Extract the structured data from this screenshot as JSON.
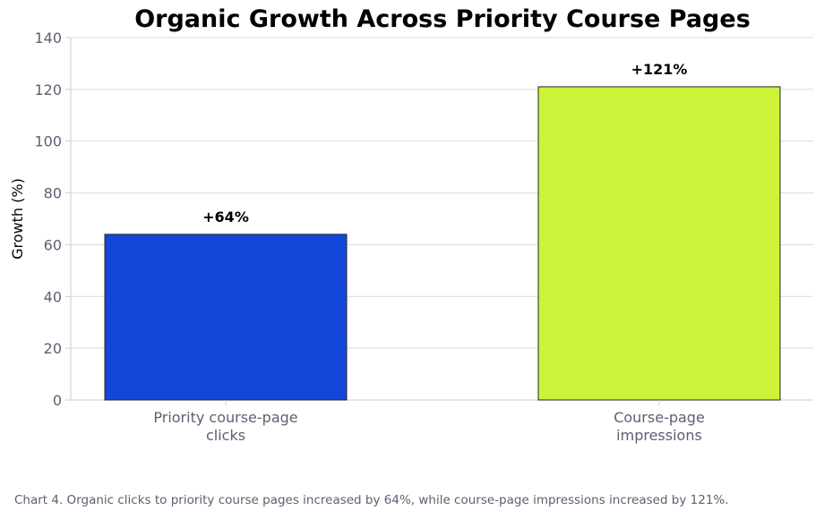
{
  "chart_data": {
    "type": "bar",
    "title": "Organic Growth Across Priority Course Pages",
    "ylabel": "Growth (%)",
    "xlabel": "",
    "ylim": [
      0,
      140
    ],
    "yticks": [
      0,
      20,
      40,
      60,
      80,
      100,
      120,
      140
    ],
    "grid": true,
    "categories": [
      "Priority course-page clicks",
      "Course-page impressions"
    ],
    "category_lines": [
      [
        "Priority course-page",
        "clicks"
      ],
      [
        "Course-page",
        "impressions"
      ]
    ],
    "values": [
      64,
      121
    ],
    "data_labels": [
      "+64%",
      "+121%"
    ],
    "colors": [
      "#1447d8",
      "#cdf23a"
    ]
  },
  "caption": "Chart 4. Organic clicks to priority course pages increased by 64%, while course-page impressions increased by 121%."
}
